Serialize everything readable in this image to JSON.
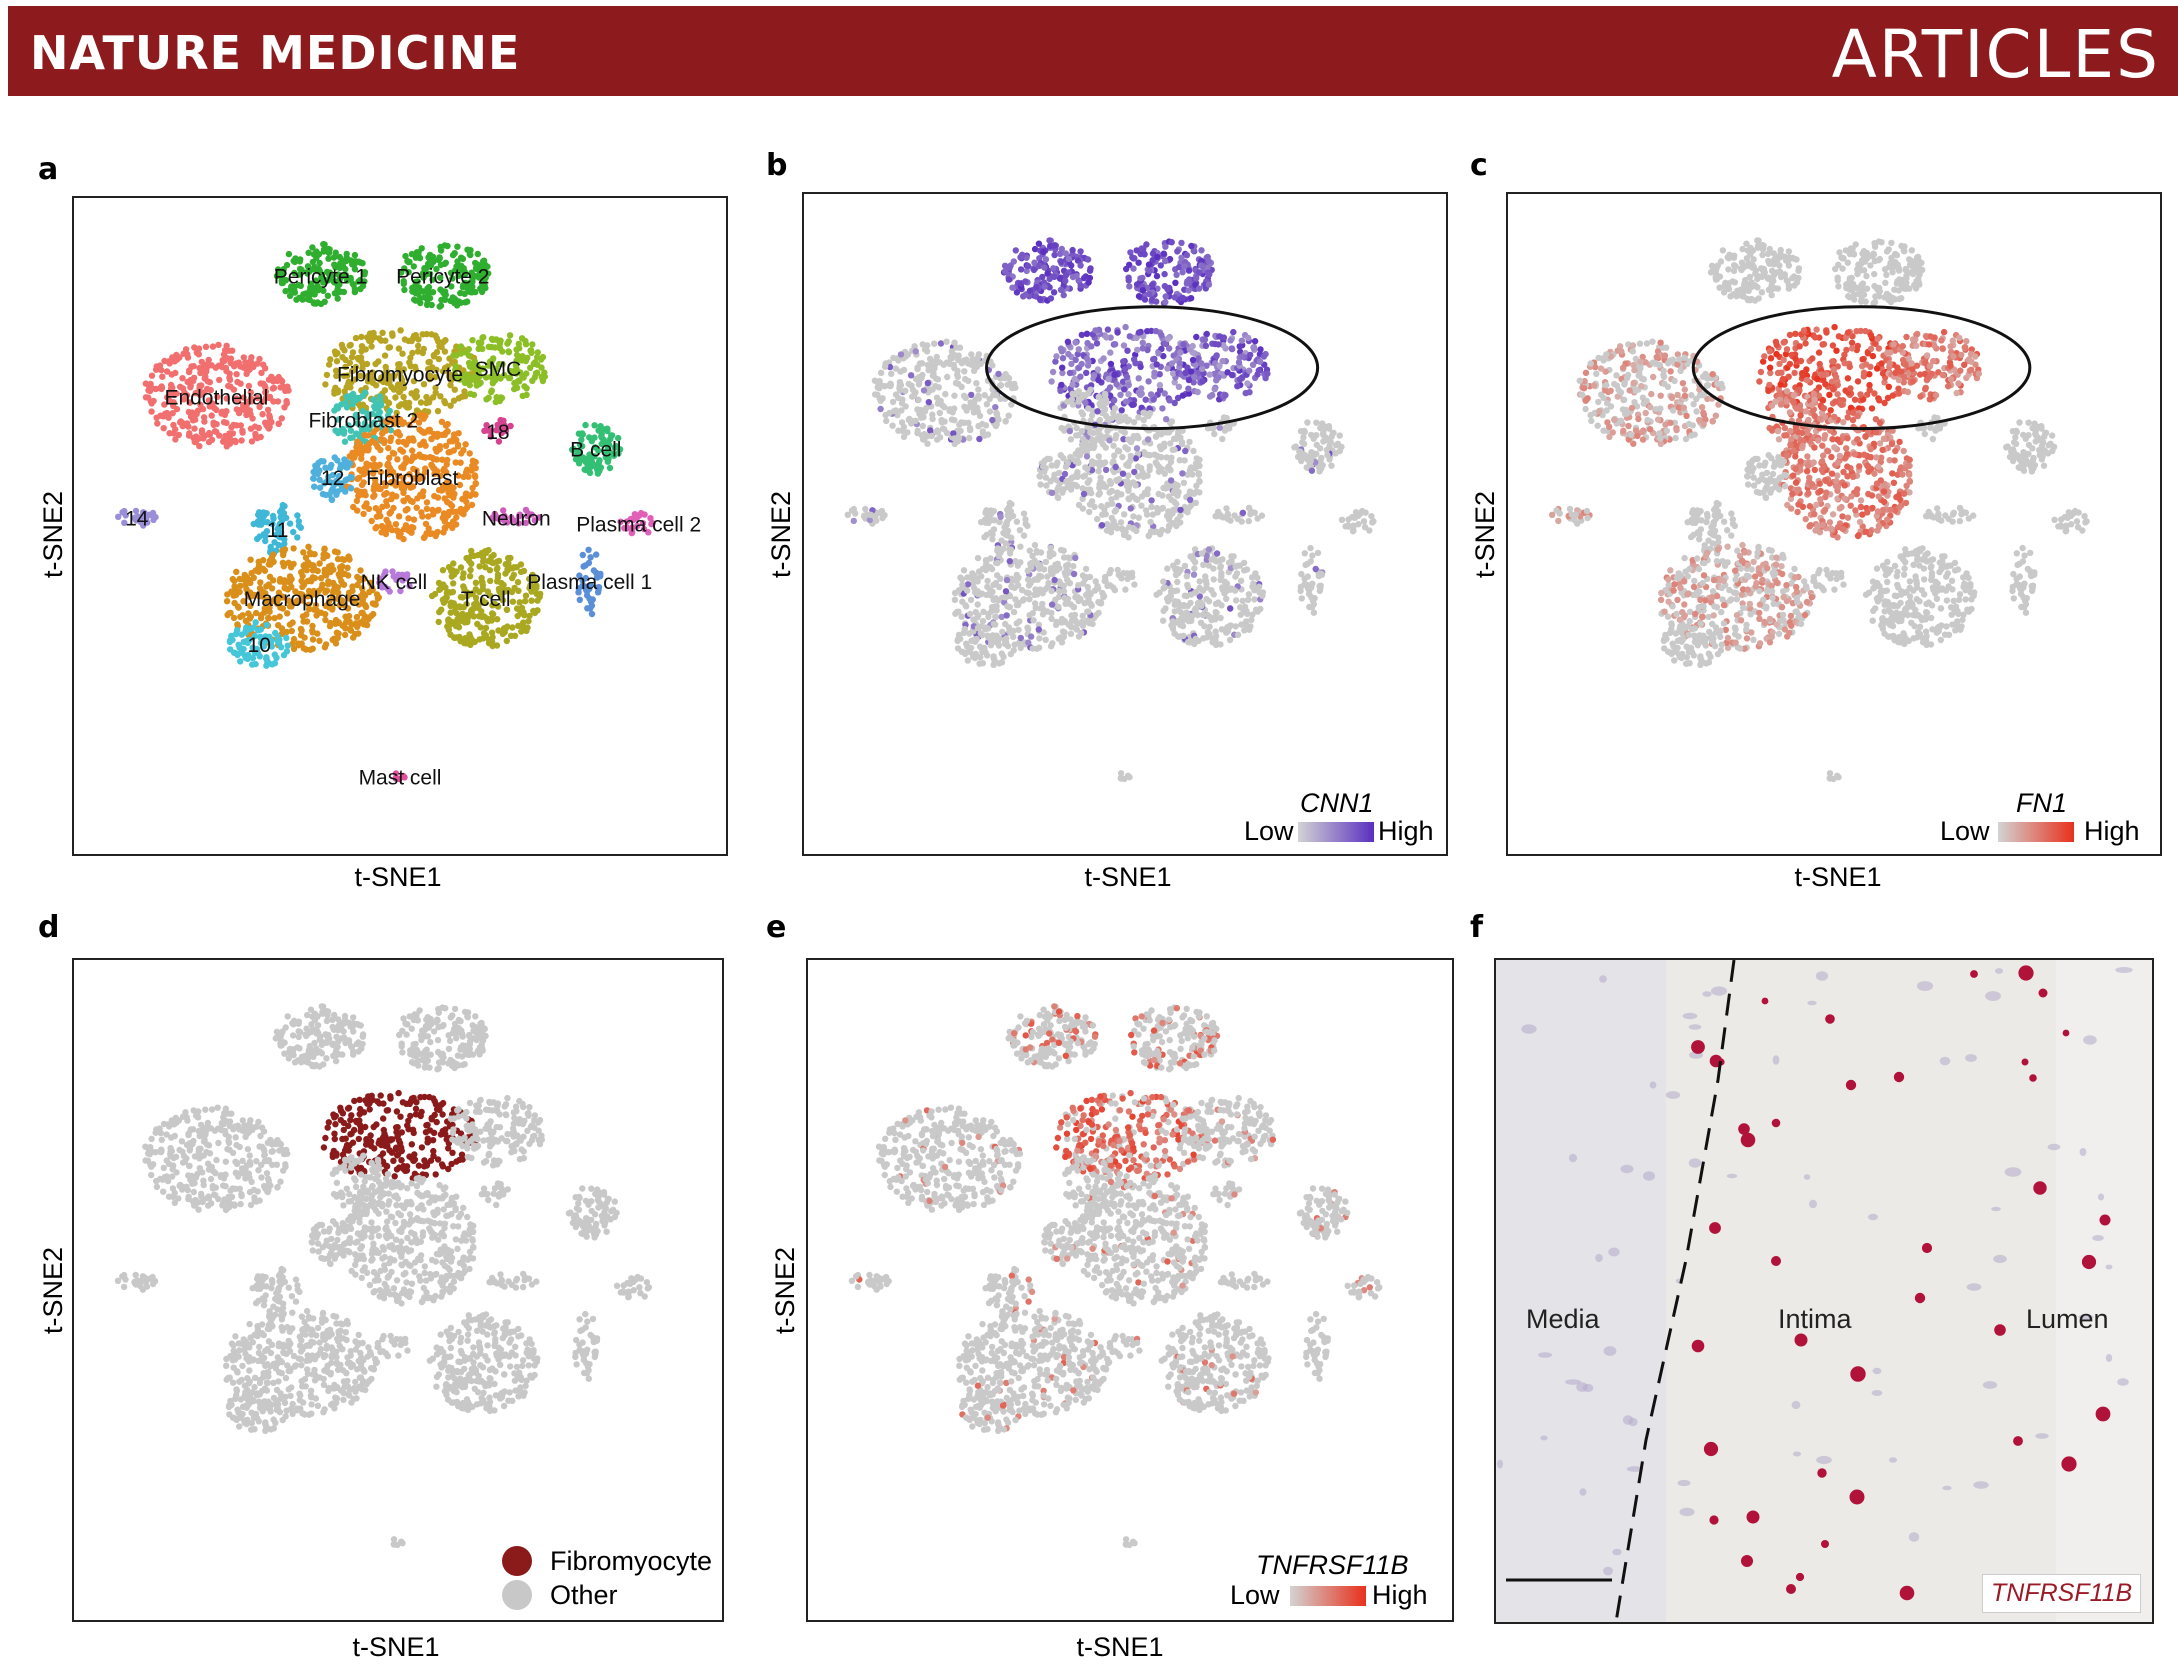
{
  "header": {
    "journal": "NATURE MEDICINE",
    "section": "ARTICLES",
    "bar_color": "#8d1a1d"
  },
  "panels": {
    "a": {
      "label": "a",
      "xlabel": "t-SNE1",
      "ylabel": "t-SNE2"
    },
    "b": {
      "label": "b",
      "xlabel": "t-SNE1",
      "ylabel": "t-SNE2",
      "gene": "CNN1",
      "low": "Low",
      "high": "High",
      "low_color": "#d3d3d3",
      "high_color": "#5a2fc0"
    },
    "c": {
      "label": "c",
      "xlabel": "t-SNE1",
      "ylabel": "t-SNE2",
      "gene": "FN1",
      "low": "Low",
      "high": "High",
      "low_color": "#d3d3d3",
      "high_color": "#e8301c"
    },
    "d": {
      "label": "d",
      "xlabel": "t-SNE1",
      "ylabel": "t-SNE2",
      "legend": [
        {
          "name": "Fibromyocyte",
          "color": "#8b1a1a"
        },
        {
          "name": "Other",
          "color": "#c8c8c8"
        }
      ]
    },
    "e": {
      "label": "e",
      "xlabel": "t-SNE1",
      "ylabel": "t-SNE2",
      "gene": "TNFRSF11B",
      "low": "Low",
      "high": "High",
      "low_color": "#d3d3d3",
      "high_color": "#e8301c"
    },
    "f": {
      "label": "f",
      "regions": [
        "Media",
        "Intima",
        "Lumen"
      ],
      "gene": "TNFRSF11B"
    }
  },
  "clusters": [
    {
      "name": "Pericyte 1",
      "color": "#2fae2f"
    },
    {
      "name": "Pericyte 2",
      "color": "#2fae2f"
    },
    {
      "name": "Fibromyocyte",
      "color": "#b8a423"
    },
    {
      "name": "SMC",
      "color": "#8cbf26"
    },
    {
      "name": "Endothelial",
      "color": "#f26f6f"
    },
    {
      "name": "Fibroblast 2",
      "color": "#41c4b4"
    },
    {
      "name": "18",
      "color": "#d6448f"
    },
    {
      "name": "B cell",
      "color": "#33bf74"
    },
    {
      "name": "Fibroblast",
      "color": "#ea8a23"
    },
    {
      "name": "12",
      "color": "#4fb0dc"
    },
    {
      "name": "14",
      "color": "#9b8ed8"
    },
    {
      "name": "Neuron",
      "color": "#cf5fbf"
    },
    {
      "name": "11",
      "color": "#3fb8d8"
    },
    {
      "name": "Plasma cell 2",
      "color": "#e060b8"
    },
    {
      "name": "NK cell",
      "color": "#b77ad9"
    },
    {
      "name": "Macrophage",
      "color": "#d98f1a"
    },
    {
      "name": "T cell",
      "color": "#a9a820"
    },
    {
      "name": "Plasma cell 1",
      "color": "#5b8fd8"
    },
    {
      "name": "10",
      "color": "#45c6d9"
    },
    {
      "name": "Mast cell",
      "color": "#e04f9a"
    }
  ]
}
